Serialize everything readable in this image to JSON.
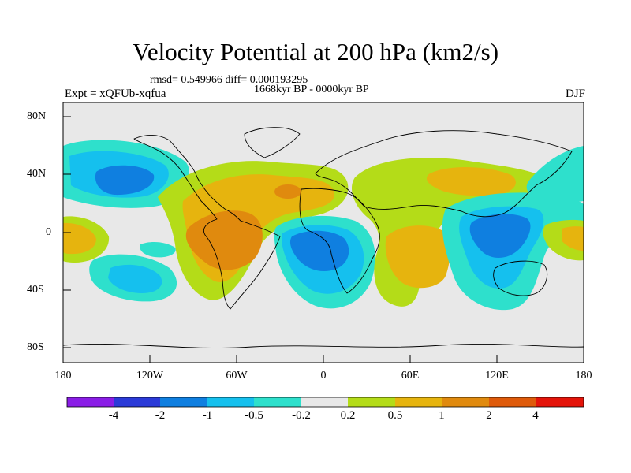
{
  "title": "Velocity Potential at 200 hPa (km2/s)",
  "stats_line": "rmsd= 0.549966 diff= 0.000193295",
  "period": "1668kyr BP - 0000kyr BP",
  "experiment": "Expt = xQFUb-xqfua",
  "season": "DJF",
  "lat_labels": [
    "80N",
    "40N",
    "0",
    "40S",
    "80S"
  ],
  "lon_labels": [
    "180",
    "120W",
    "60W",
    "0",
    "60E",
    "120E",
    "180"
  ],
  "colorbar": {
    "labels": [
      "-4",
      "-2",
      "-1",
      "-0.5",
      "-0.2",
      "0.2",
      "0.5",
      "1",
      "2",
      "4"
    ],
    "colors": [
      "#8a1de6",
      "#2b3ad8",
      "#0f7fe0",
      "#15c0ee",
      "#2ee0cc",
      "#e8e8e8",
      "#b4dc18",
      "#e6b40e",
      "#e08a0e",
      "#de5a0a",
      "#e4140a"
    ]
  }
}
